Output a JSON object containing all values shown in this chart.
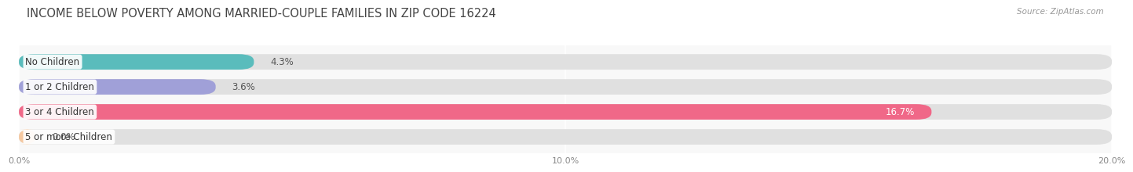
{
  "title": "INCOME BELOW POVERTY AMONG MARRIED-COUPLE FAMILIES IN ZIP CODE 16224",
  "source": "Source: ZipAtlas.com",
  "categories": [
    "No Children",
    "1 or 2 Children",
    "3 or 4 Children",
    "5 or more Children"
  ],
  "values": [
    4.3,
    3.6,
    16.7,
    0.0
  ],
  "value_labels": [
    "4.3%",
    "3.6%",
    "16.7%",
    "0.0%"
  ],
  "bar_colors": [
    "#5abcbc",
    "#a0a0d8",
    "#f06888",
    "#f5c8a0"
  ],
  "xlim": [
    0,
    20.0
  ],
  "xticks": [
    0.0,
    10.0,
    20.0
  ],
  "xtick_labels": [
    "0.0%",
    "10.0%",
    "20.0%"
  ],
  "background_color": "#f0f0f0",
  "bar_bg_color": "#e0e0e0",
  "title_fontsize": 10.5,
  "label_fontsize": 8.5,
  "value_fontsize": 8.5,
  "bar_height": 0.62,
  "bar_gap": 0.12
}
